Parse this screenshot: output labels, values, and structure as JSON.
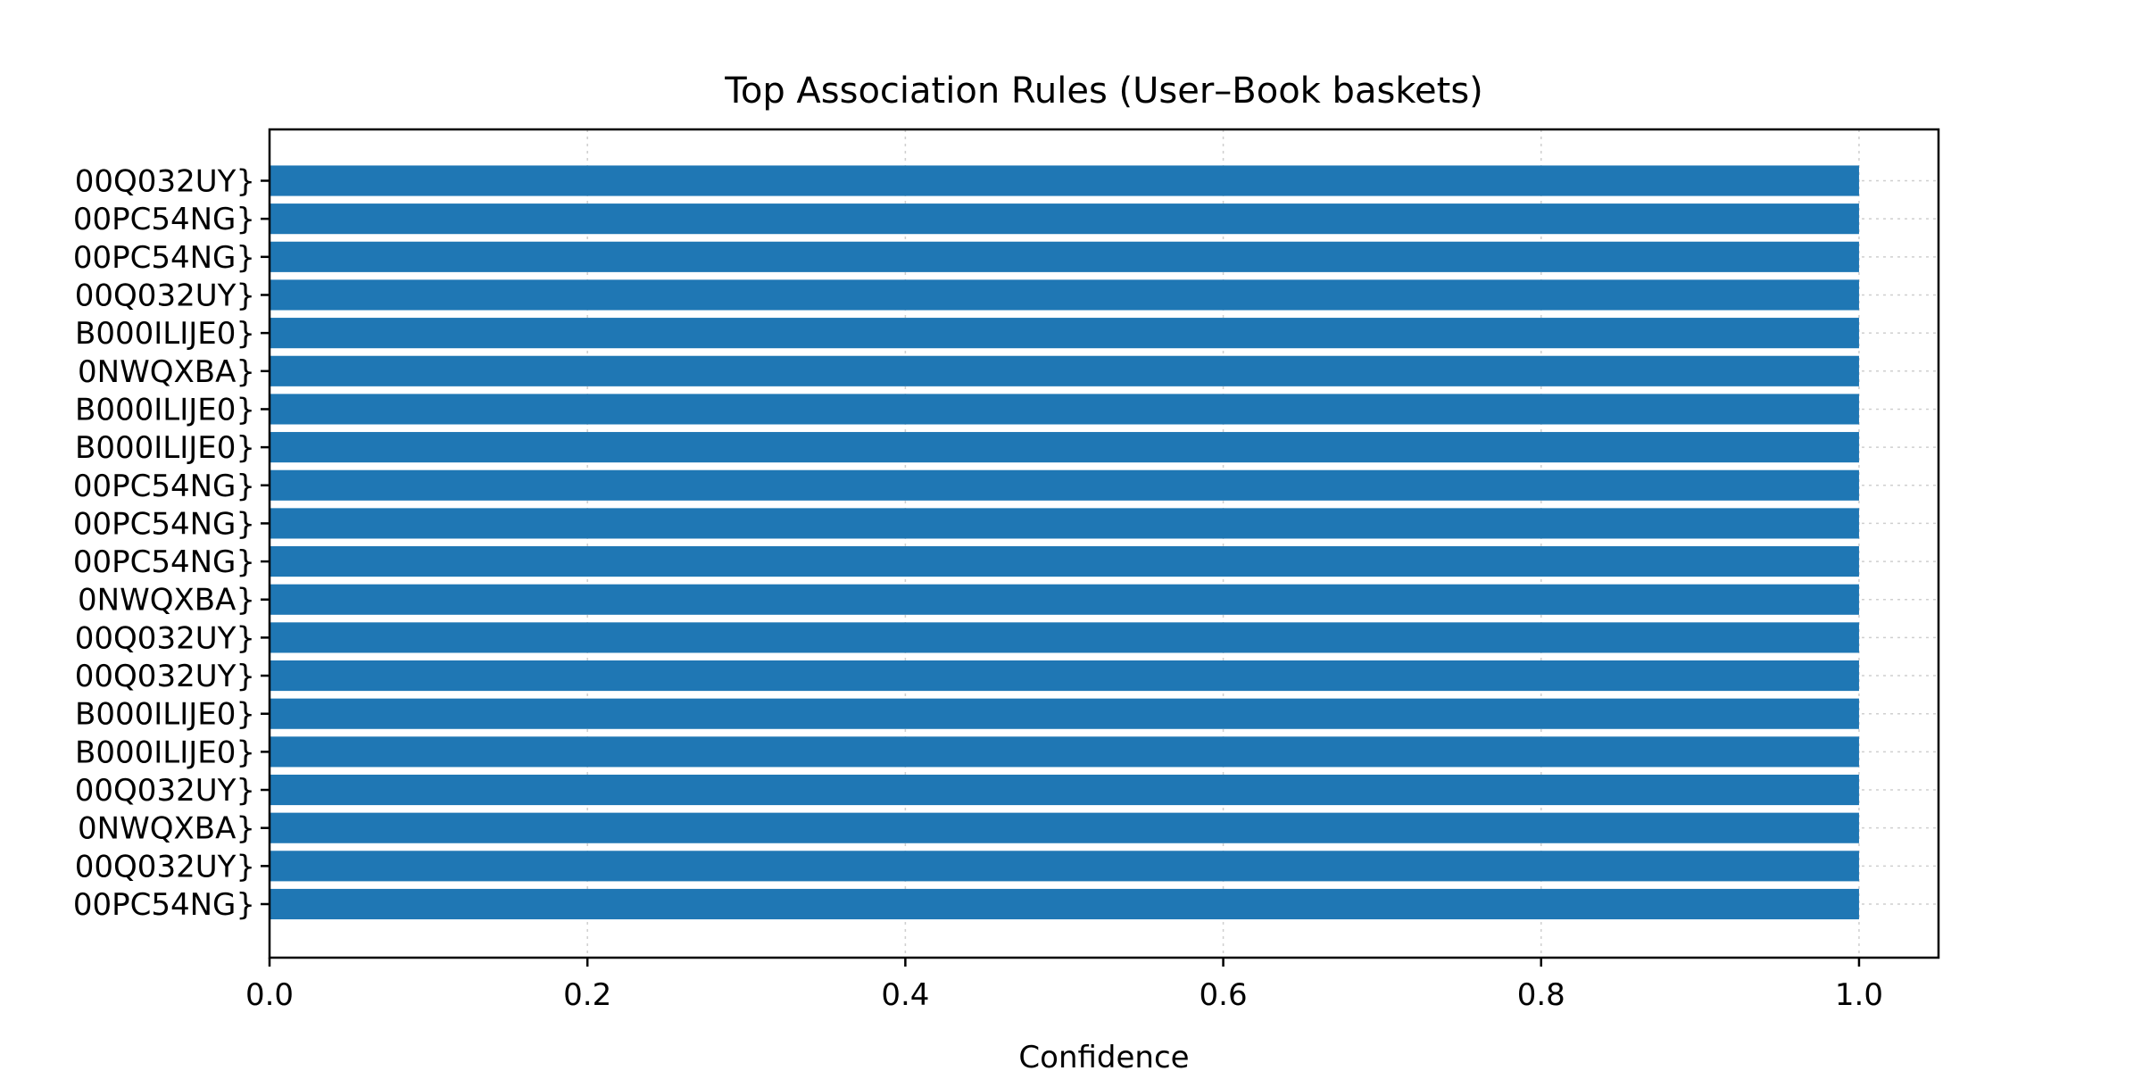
{
  "chart_data": {
    "type": "bar",
    "orientation": "horizontal",
    "title": "Top Association Rules (User–Book baskets)",
    "xlabel": "Confidence",
    "ylabel": "",
    "xlim": [
      0.0,
      1.05
    ],
    "xticks": [
      "0.0",
      "0.2",
      "0.4",
      "0.6",
      "0.8",
      "1.0"
    ],
    "grid": true,
    "color": "#1f77b4",
    "categories": [
      "00Q032UY}",
      "00PC54NG}",
      "00PC54NG}",
      "00Q032UY}",
      "B000ILIJE0}",
      "0NWQXBA}",
      "B000ILIJE0}",
      "B000ILIJE0}",
      "00PC54NG}",
      "00PC54NG}",
      "00PC54NG}",
      "0NWQXBA}",
      "00Q032UY}",
      "00Q032UY}",
      "B000ILIJE0}",
      "B000ILIJE0}",
      "00Q032UY}",
      "0NWQXBA}",
      "00Q032UY}",
      "00PC54NG}"
    ],
    "values": [
      1.0,
      1.0,
      1.0,
      1.0,
      1.0,
      1.0,
      1.0,
      1.0,
      1.0,
      1.0,
      1.0,
      1.0,
      1.0,
      1.0,
      1.0,
      1.0,
      1.0,
      1.0,
      1.0,
      1.0
    ]
  }
}
